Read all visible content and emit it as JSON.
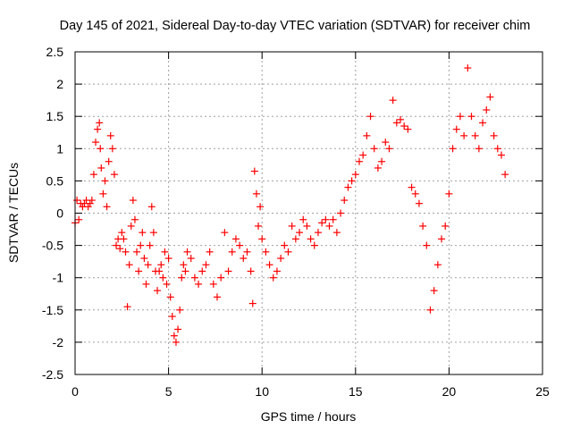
{
  "chart_data": {
    "type": "scatter",
    "title": "Day 145 of 2021, Sidereal Day-to-day VTEC variation (SDTVAR) for receiver chim",
    "xlabel": "GPS time / hours",
    "ylabel": "SDTVAR / TECUs",
    "xlim": [
      0,
      25
    ],
    "ylim": [
      -2.5,
      2.5
    ],
    "xticks": [
      0,
      5,
      10,
      15,
      20,
      25
    ],
    "xtick_labels": [
      "0",
      "5",
      "10",
      "15",
      "20",
      "25"
    ],
    "yticks": [
      -2.5,
      -2,
      -1.5,
      -1,
      -0.5,
      0,
      0.5,
      1,
      1.5,
      2,
      2.5
    ],
    "ytick_labels": [
      "-2.5",
      "-2",
      "-1.5",
      "-1",
      "-0.5",
      "0",
      "0.5",
      "1",
      "1.5",
      "2",
      "2.5"
    ],
    "grid": true,
    "marker": "+",
    "color": "#ff0000",
    "series": [
      {
        "name": "SDTVAR",
        "x": [
          0.0,
          0.1,
          0.2,
          0.3,
          0.4,
          0.5,
          0.6,
          0.7,
          0.8,
          0.9,
          1.0,
          1.1,
          1.2,
          1.3,
          1.35,
          1.4,
          1.5,
          1.6,
          1.7,
          1.8,
          1.9,
          2.0,
          2.1,
          2.2,
          2.3,
          2.4,
          2.5,
          2.6,
          2.7,
          2.8,
          2.9,
          3.0,
          3.1,
          3.2,
          3.3,
          3.4,
          3.5,
          3.6,
          3.7,
          3.8,
          3.9,
          4.0,
          4.1,
          4.2,
          4.3,
          4.4,
          4.5,
          4.6,
          4.7,
          4.8,
          4.9,
          5.0,
          5.1,
          5.2,
          5.3,
          5.4,
          5.5,
          5.6,
          5.7,
          5.8,
          5.9,
          6.0,
          6.2,
          6.4,
          6.6,
          6.8,
          7.0,
          7.2,
          7.4,
          7.6,
          7.8,
          8.0,
          8.2,
          8.4,
          8.6,
          8.8,
          9.0,
          9.2,
          9.4,
          9.5,
          9.6,
          9.7,
          9.8,
          9.9,
          10.0,
          10.2,
          10.4,
          10.6,
          10.8,
          11.0,
          11.2,
          11.4,
          11.6,
          11.8,
          12.0,
          12.2,
          12.4,
          12.6,
          12.8,
          13.0,
          13.2,
          13.4,
          13.6,
          13.8,
          14.0,
          14.2,
          14.4,
          14.6,
          14.8,
          15.0,
          15.2,
          15.4,
          15.6,
          15.8,
          16.0,
          16.2,
          16.4,
          16.6,
          16.8,
          17.0,
          17.2,
          17.4,
          17.6,
          17.8,
          18.0,
          18.2,
          18.4,
          18.6,
          18.8,
          19.0,
          19.2,
          19.4,
          19.6,
          19.8,
          20.0,
          20.2,
          20.4,
          20.6,
          20.8,
          21.0,
          21.2,
          21.4,
          21.6,
          21.8,
          22.0,
          22.2,
          22.4,
          22.6,
          22.8,
          23.0
        ],
        "y": [
          -0.15,
          0.2,
          -0.1,
          0.15,
          0.1,
          0.15,
          0.2,
          0.1,
          0.15,
          0.2,
          0.6,
          1.1,
          1.3,
          1.4,
          1.0,
          0.7,
          0.3,
          0.5,
          0.1,
          0.8,
          1.2,
          1.0,
          0.6,
          -0.5,
          -0.4,
          -0.55,
          -0.3,
          -0.4,
          -0.6,
          -1.45,
          -0.8,
          -0.2,
          0.2,
          -0.1,
          -0.6,
          -0.9,
          -0.5,
          -0.3,
          -0.7,
          -1.1,
          -0.8,
          -0.5,
          0.1,
          -0.3,
          -0.9,
          -1.2,
          -0.9,
          -0.8,
          -1.0,
          -0.6,
          -1.1,
          -0.7,
          -1.3,
          -1.6,
          -1.9,
          -2.0,
          -1.8,
          -1.5,
          -1.0,
          -0.8,
          -0.9,
          -0.6,
          -0.7,
          -1.0,
          -1.1,
          -0.9,
          -0.8,
          -0.6,
          -1.1,
          -1.3,
          -1.0,
          -0.3,
          -0.9,
          -0.6,
          -0.4,
          -0.5,
          -0.7,
          -0.6,
          -0.9,
          -1.4,
          0.65,
          0.3,
          -0.2,
          0.1,
          -0.4,
          -0.6,
          -0.8,
          -1.0,
          -0.9,
          -0.7,
          -0.5,
          -0.6,
          -0.2,
          -0.4,
          -0.3,
          -0.1,
          -0.2,
          -0.4,
          -0.5,
          -0.3,
          -0.15,
          -0.1,
          -0.2,
          -0.1,
          -0.3,
          0.0,
          0.2,
          0.4,
          0.5,
          0.6,
          0.8,
          0.9,
          1.2,
          1.5,
          1.0,
          0.7,
          0.8,
          1.1,
          1.0,
          1.75,
          1.4,
          1.45,
          1.35,
          1.3,
          0.4,
          0.3,
          0.15,
          -0.2,
          -0.5,
          -1.5,
          -1.2,
          -0.8,
          -0.4,
          -0.2,
          0.3,
          1.0,
          1.3,
          1.5,
          1.2,
          2.25,
          1.5,
          1.2,
          1.0,
          1.4,
          1.6,
          1.8,
          1.2,
          1.0,
          0.9,
          0.6
        ]
      }
    ]
  }
}
